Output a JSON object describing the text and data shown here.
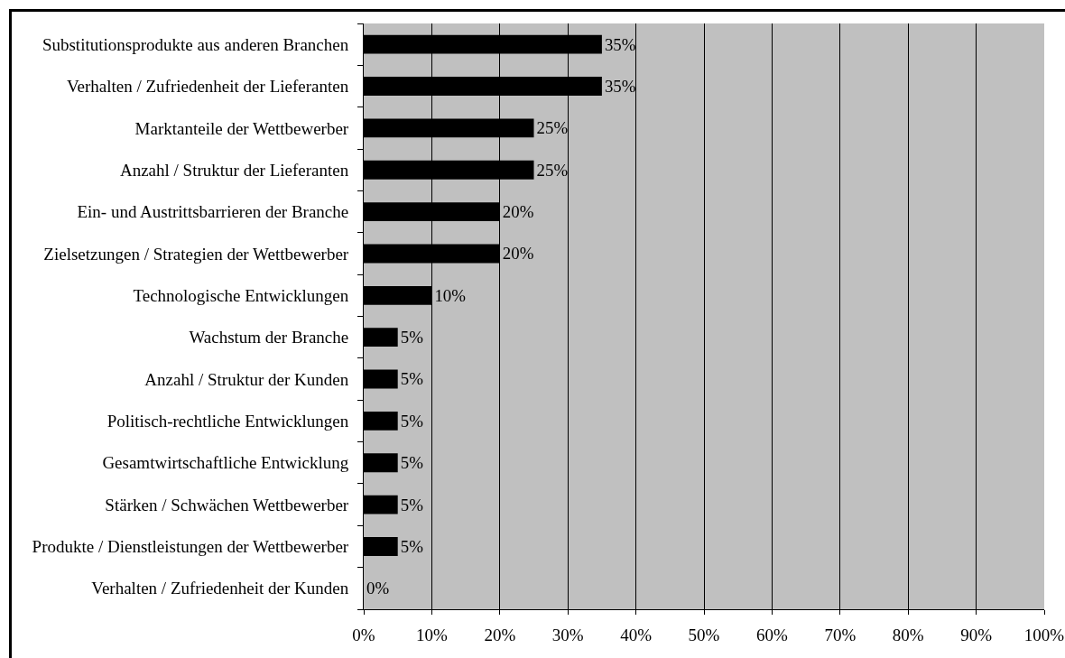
{
  "chart_data": {
    "type": "bar",
    "orientation": "horizontal",
    "categories": [
      "Substitutionsprodukte aus anderen Branchen",
      "Verhalten / Zufriedenheit der Lieferanten",
      "Marktanteile der Wettbewerber",
      "Anzahl / Struktur der Lieferanten",
      "Ein- und Austrittsbarrieren der Branche",
      "Zielsetzungen / Strategien der Wettbewerber",
      "Technologische Entwicklungen",
      "Wachstum der Branche",
      "Anzahl / Struktur der Kunden",
      "Politisch-rechtliche Entwicklungen",
      "Gesamtwirtschaftliche Entwicklung",
      "Stärken / Schwächen Wettbewerber",
      "Produkte / Dienstleistungen der Wettbewerber",
      "Verhalten / Zufriedenheit der Kunden"
    ],
    "values": [
      35,
      35,
      25,
      25,
      20,
      20,
      10,
      5,
      5,
      5,
      5,
      5,
      5,
      0
    ],
    "value_labels": [
      "35%",
      "35%",
      "25%",
      "25%",
      "20%",
      "20%",
      "10%",
      "5%",
      "5%",
      "5%",
      "5%",
      "5%",
      "5%",
      "0%"
    ],
    "color": "#000000",
    "xlim": [
      0,
      100
    ],
    "xticks": [
      {
        "value": 0,
        "label": "0%"
      },
      {
        "value": 10,
        "label": "10%"
      },
      {
        "value": 20,
        "label": "20%"
      },
      {
        "value": 30,
        "label": "30%"
      },
      {
        "value": 40,
        "label": "40%"
      },
      {
        "value": 50,
        "label": "50%"
      },
      {
        "value": 60,
        "label": "60%"
      },
      {
        "value": 70,
        "label": "70%"
      },
      {
        "value": 80,
        "label": "80%"
      },
      {
        "value": 90,
        "label": "90%"
      },
      {
        "value": 100,
        "label": "100%"
      }
    ],
    "grid": "x"
  }
}
